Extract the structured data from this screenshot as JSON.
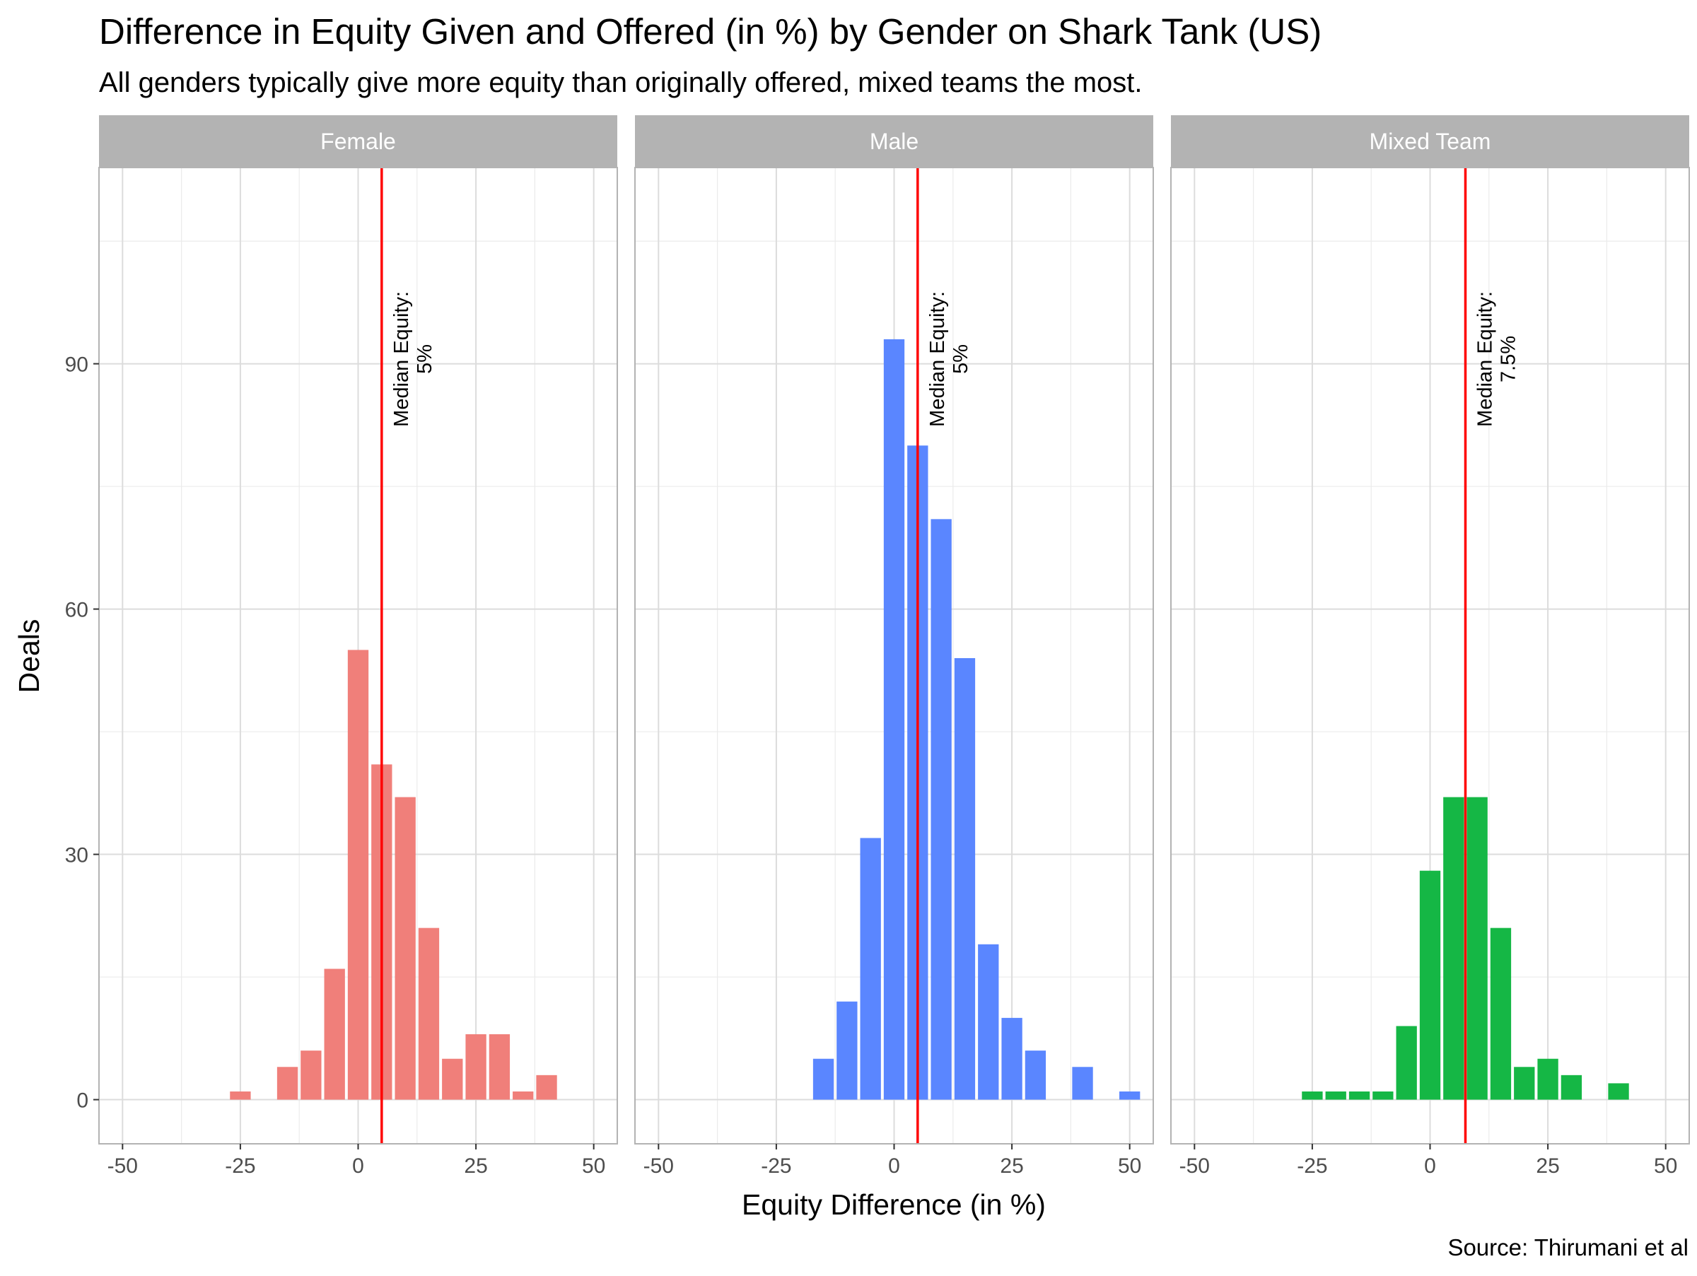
{
  "chart_data": {
    "type": "bar",
    "title": "Difference in Equity Given and Offered (in %) by Gender on Shark Tank (US)",
    "subtitle": "All genders typically give more equity than originally offered, mixed teams the most.",
    "caption": "Source: Thirumani et al",
    "xlabel": "Equity Difference (in %)",
    "ylabel": "Deals",
    "xlim": [
      -55,
      55
    ],
    "ylim": [
      -5.4,
      114
    ],
    "x_ticks": [
      -50,
      -25,
      0,
      25,
      50
    ],
    "x_tick_labels": [
      "-50",
      "-25",
      "0",
      "25",
      "50"
    ],
    "y_ticks": [
      0,
      30,
      60,
      90
    ],
    "y_tick_labels": [
      "0",
      "30",
      "60",
      "90"
    ],
    "bin_width": 5,
    "grid": true,
    "legend": "none",
    "median_line_color": "#ff0000",
    "panels": [
      {
        "name": "Female",
        "color": "#f07f7a",
        "median": 5,
        "median_label": [
          "Median Equity:",
          "5%"
        ],
        "bins": [
          {
            "x": -25,
            "y": 1
          },
          {
            "x": -15,
            "y": 4
          },
          {
            "x": -10,
            "y": 6
          },
          {
            "x": -5,
            "y": 16
          },
          {
            "x": 0,
            "y": 55
          },
          {
            "x": 5,
            "y": 41
          },
          {
            "x": 10,
            "y": 37
          },
          {
            "x": 15,
            "y": 21
          },
          {
            "x": 20,
            "y": 5
          },
          {
            "x": 25,
            "y": 8
          },
          {
            "x": 30,
            "y": 8
          },
          {
            "x": 35,
            "y": 1
          },
          {
            "x": 40,
            "y": 3
          }
        ]
      },
      {
        "name": "Male",
        "color": "#5a86ff",
        "median": 5,
        "median_label": [
          "Median Equity:",
          "5%"
        ],
        "bins": [
          {
            "x": -15,
            "y": 5
          },
          {
            "x": -10,
            "y": 12
          },
          {
            "x": -5,
            "y": 32
          },
          {
            "x": 0,
            "y": 93
          },
          {
            "x": 5,
            "y": 80
          },
          {
            "x": 10,
            "y": 71
          },
          {
            "x": 15,
            "y": 54
          },
          {
            "x": 20,
            "y": 19
          },
          {
            "x": 25,
            "y": 10
          },
          {
            "x": 30,
            "y": 6
          },
          {
            "x": 40,
            "y": 4
          },
          {
            "x": 50,
            "y": 1
          }
        ]
      },
      {
        "name": "Mixed Team",
        "color": "#15b745",
        "median": 7.5,
        "median_label": [
          "Median Equity:",
          "7.5%"
        ],
        "bins": [
          {
            "x": -25,
            "y": 1
          },
          {
            "x": -20,
            "y": 1
          },
          {
            "x": -15,
            "y": 1
          },
          {
            "x": -10,
            "y": 1
          },
          {
            "x": -5,
            "y": 9
          },
          {
            "x": 0,
            "y": 28
          },
          {
            "x": 5,
            "y": 37
          },
          {
            "x": 10,
            "y": 37
          },
          {
            "x": 15,
            "y": 21
          },
          {
            "x": 20,
            "y": 4
          },
          {
            "x": 25,
            "y": 5
          },
          {
            "x": 30,
            "y": 3
          },
          {
            "x": 40,
            "y": 2
          }
        ]
      }
    ]
  }
}
